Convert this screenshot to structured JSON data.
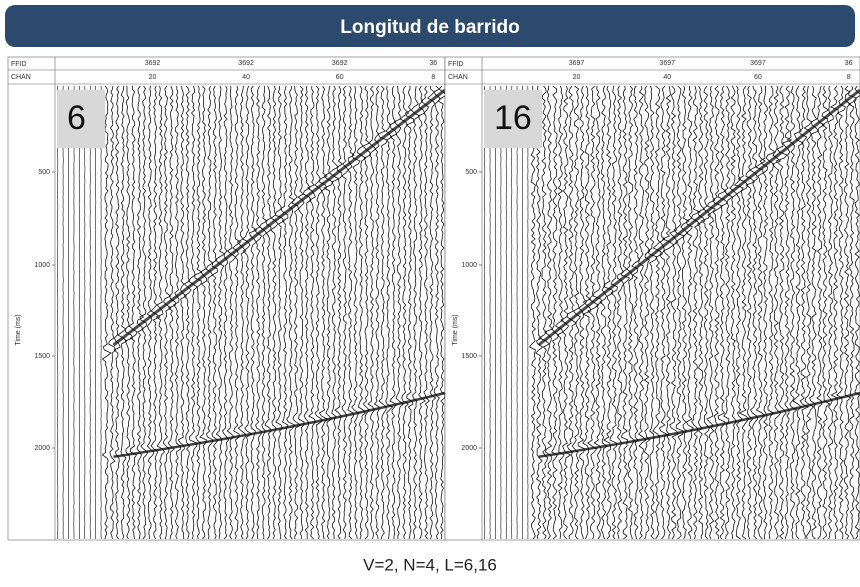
{
  "header": {
    "title": "Longitud de barrido"
  },
  "panels": [
    {
      "label": "6",
      "ffid_label": "FFID",
      "chan_label": "CHAN",
      "ffid": [
        "3692",
        "3692",
        "3692",
        "36"
      ],
      "chan": [
        "20",
        "40",
        "60",
        "8"
      ],
      "time_ticks": [
        "500",
        "1000",
        "1500",
        "2000"
      ],
      "time_axis_label": "Time (ms)"
    },
    {
      "label": "16",
      "ffid_label": "FFID",
      "chan_label": "CHAN",
      "ffid": [
        "3697",
        "3697",
        "3697",
        "36"
      ],
      "chan": [
        "20",
        "40",
        "60",
        "8"
      ],
      "time_ticks": [
        "500",
        "1000",
        "1500",
        "2000"
      ],
      "time_axis_label": "Time (ms)"
    }
  ],
  "caption": "V=2, N=4, L=6,16"
}
